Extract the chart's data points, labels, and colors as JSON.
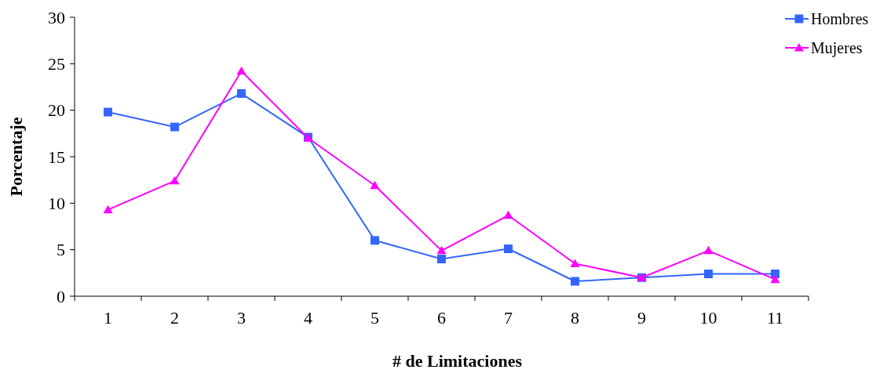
{
  "chart_data": {
    "type": "line",
    "xlabel": "# de Limitaciones",
    "ylabel": "Porcentaje",
    "categories": [
      "1",
      "2",
      "3",
      "4",
      "5",
      "6",
      "7",
      "8",
      "9",
      "10",
      "11"
    ],
    "series": [
      {
        "name": "Hombres",
        "color": "#3366ff",
        "marker": "square",
        "values": [
          19.8,
          18.2,
          21.8,
          17.1,
          6.0,
          4.0,
          5.1,
          1.6,
          2.0,
          2.4,
          2.4
        ]
      },
      {
        "name": "Mujeres",
        "color": "#ff00ff",
        "marker": "triangle",
        "values": [
          9.3,
          12.4,
          24.2,
          17.0,
          11.9,
          4.9,
          8.7,
          3.5,
          2.0,
          4.9,
          1.8
        ]
      }
    ],
    "ylim": [
      0,
      30
    ],
    "yticks": [
      0,
      5,
      10,
      15,
      20,
      25,
      30
    ],
    "legend": "top right",
    "grid": false
  }
}
